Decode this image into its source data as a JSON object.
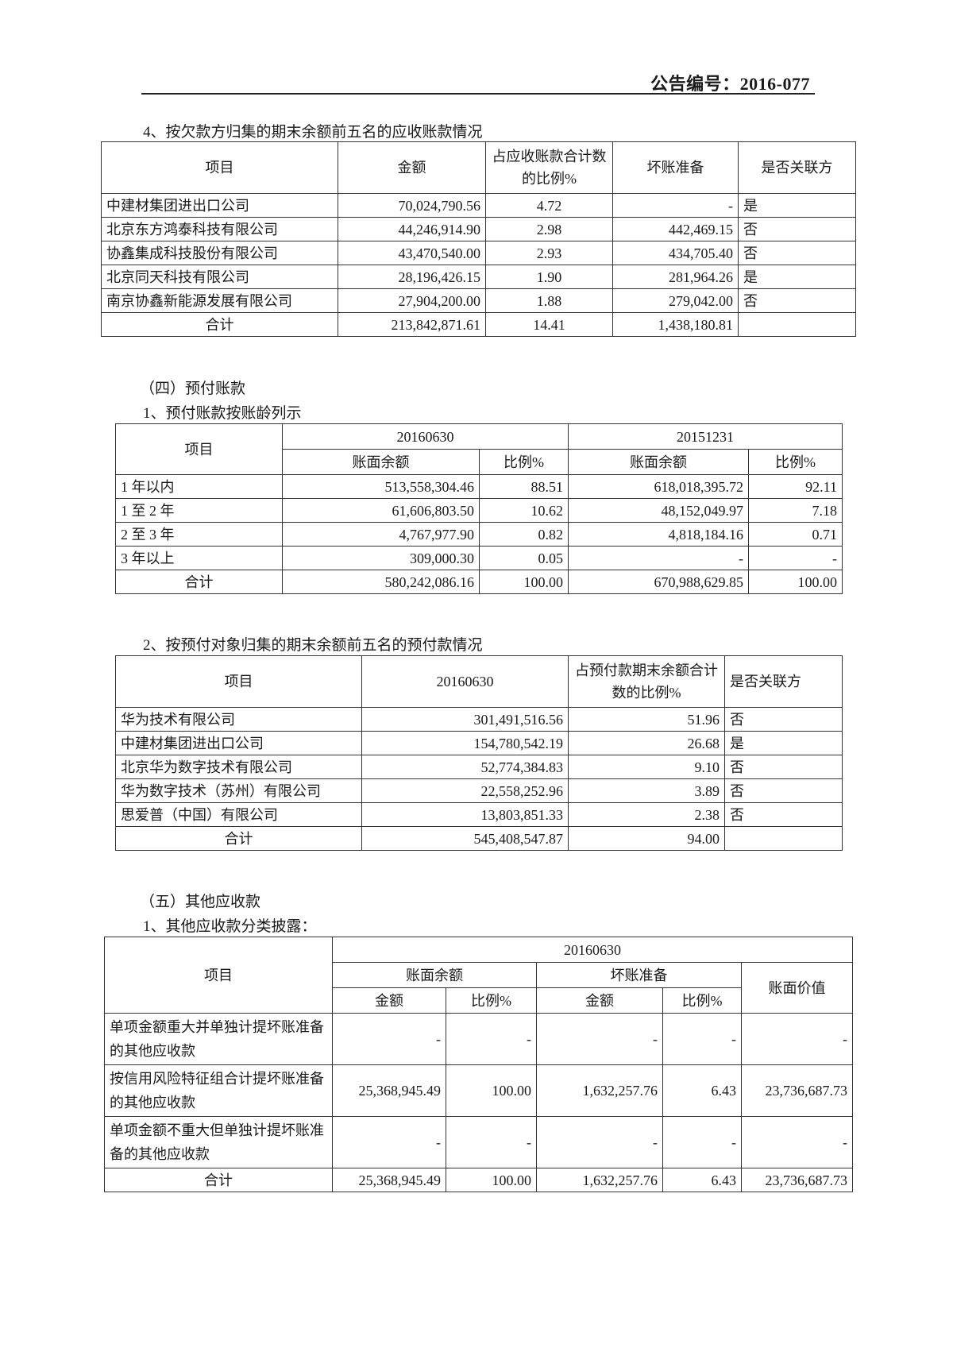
{
  "header": {
    "announcement_no": "公告编号：2016-077"
  },
  "section4": {
    "title": "4、按欠款方归集的期末余额前五名的应收账款情况",
    "headers": [
      "项目",
      "金额",
      "占应收账款合计数的比例%",
      "坏账准备",
      "是否关联方"
    ],
    "rows": [
      [
        "中建材集团进出口公司",
        "70,024,790.56",
        "4.72",
        "-",
        "是"
      ],
      [
        "北京东方鸿泰科技有限公司",
        "44,246,914.90",
        "2.98",
        "442,469.15",
        "否"
      ],
      [
        "协鑫集成科技股份有限公司",
        "43,470,540.00",
        "2.93",
        "434,705.40",
        "否"
      ],
      [
        "北京同天科技有限公司",
        "28,196,426.15",
        "1.90",
        "281,964.26",
        "是"
      ],
      [
        "南京协鑫新能源发展有限公司",
        "27,904,200.00",
        "1.88",
        "279,042.00",
        "否"
      ],
      [
        "合计",
        "213,842,871.61",
        "14.41",
        "1,438,180.81",
        ""
      ]
    ]
  },
  "prepayments": {
    "section_title": "（四）预付账款",
    "aging": {
      "title": "1、预付账款按账龄列示",
      "item_header": "项目",
      "periods": [
        "20160630",
        "20151231"
      ],
      "sub_headers": [
        "账面余额",
        "比例%",
        "账面余额",
        "比例%"
      ],
      "rows": [
        [
          "1 年以内",
          "513,558,304.46",
          "88.51",
          "618,018,395.72",
          "92.11"
        ],
        [
          "1 至 2 年",
          "61,606,803.50",
          "10.62",
          "48,152,049.97",
          "7.18"
        ],
        [
          "2 至 3 年",
          "4,767,977.90",
          "0.82",
          "4,818,184.16",
          "0.71"
        ],
        [
          "3 年以上",
          "309,000.30",
          "0.05",
          "-",
          "-"
        ],
        [
          "合计",
          "580,242,086.16",
          "100.00",
          "670,988,629.85",
          "100.00"
        ]
      ]
    },
    "top5": {
      "title": "2、按预付对象归集的期末余额前五名的预付款情况",
      "headers": [
        "项目",
        "20160630",
        "占预付款期末余额合计数的比例%",
        "是否关联方"
      ],
      "rows": [
        [
          "华为技术有限公司",
          "301,491,516.56",
          "51.96",
          "否"
        ],
        [
          "中建材集团进出口公司",
          "154,780,542.19",
          "26.68",
          "是"
        ],
        [
          "北京华为数字技术有限公司",
          "52,774,384.83",
          "9.10",
          "否"
        ],
        [
          "华为数字技术（苏州）有限公司",
          "22,558,252.96",
          "3.89",
          "否"
        ],
        [
          "思爱普（中国）有限公司",
          "13,803,851.33",
          "2.38",
          "否"
        ],
        [
          "合计",
          "545,408,547.87",
          "94.00",
          ""
        ]
      ]
    }
  },
  "other_receivables": {
    "section_title": "（五）其他应收款",
    "title": "1、其他应收款分类披露：",
    "item_header": "项目",
    "period": "20160630",
    "group_headers": [
      "账面余额",
      "坏账准备",
      "账面价值"
    ],
    "sub_headers": [
      "金额",
      "比例%",
      "金额",
      "比例%"
    ],
    "rows": [
      [
        "单项金额重大并单独计提坏账准备的其他应收款",
        "-",
        "-",
        "-",
        "-",
        "-"
      ],
      [
        "按信用风险特征组合计提坏账准备的其他应收款",
        "25,368,945.49",
        "100.00",
        "1,632,257.76",
        "6.43",
        "23,736,687.73"
      ],
      [
        "单项金额不重大但单独计提坏账准备的其他应收款",
        "-",
        "-",
        "-",
        "-",
        "-"
      ],
      [
        "合计",
        "25,368,945.49",
        "100.00",
        "1,632,257.76",
        "6.43",
        "23,736,687.73"
      ]
    ]
  }
}
